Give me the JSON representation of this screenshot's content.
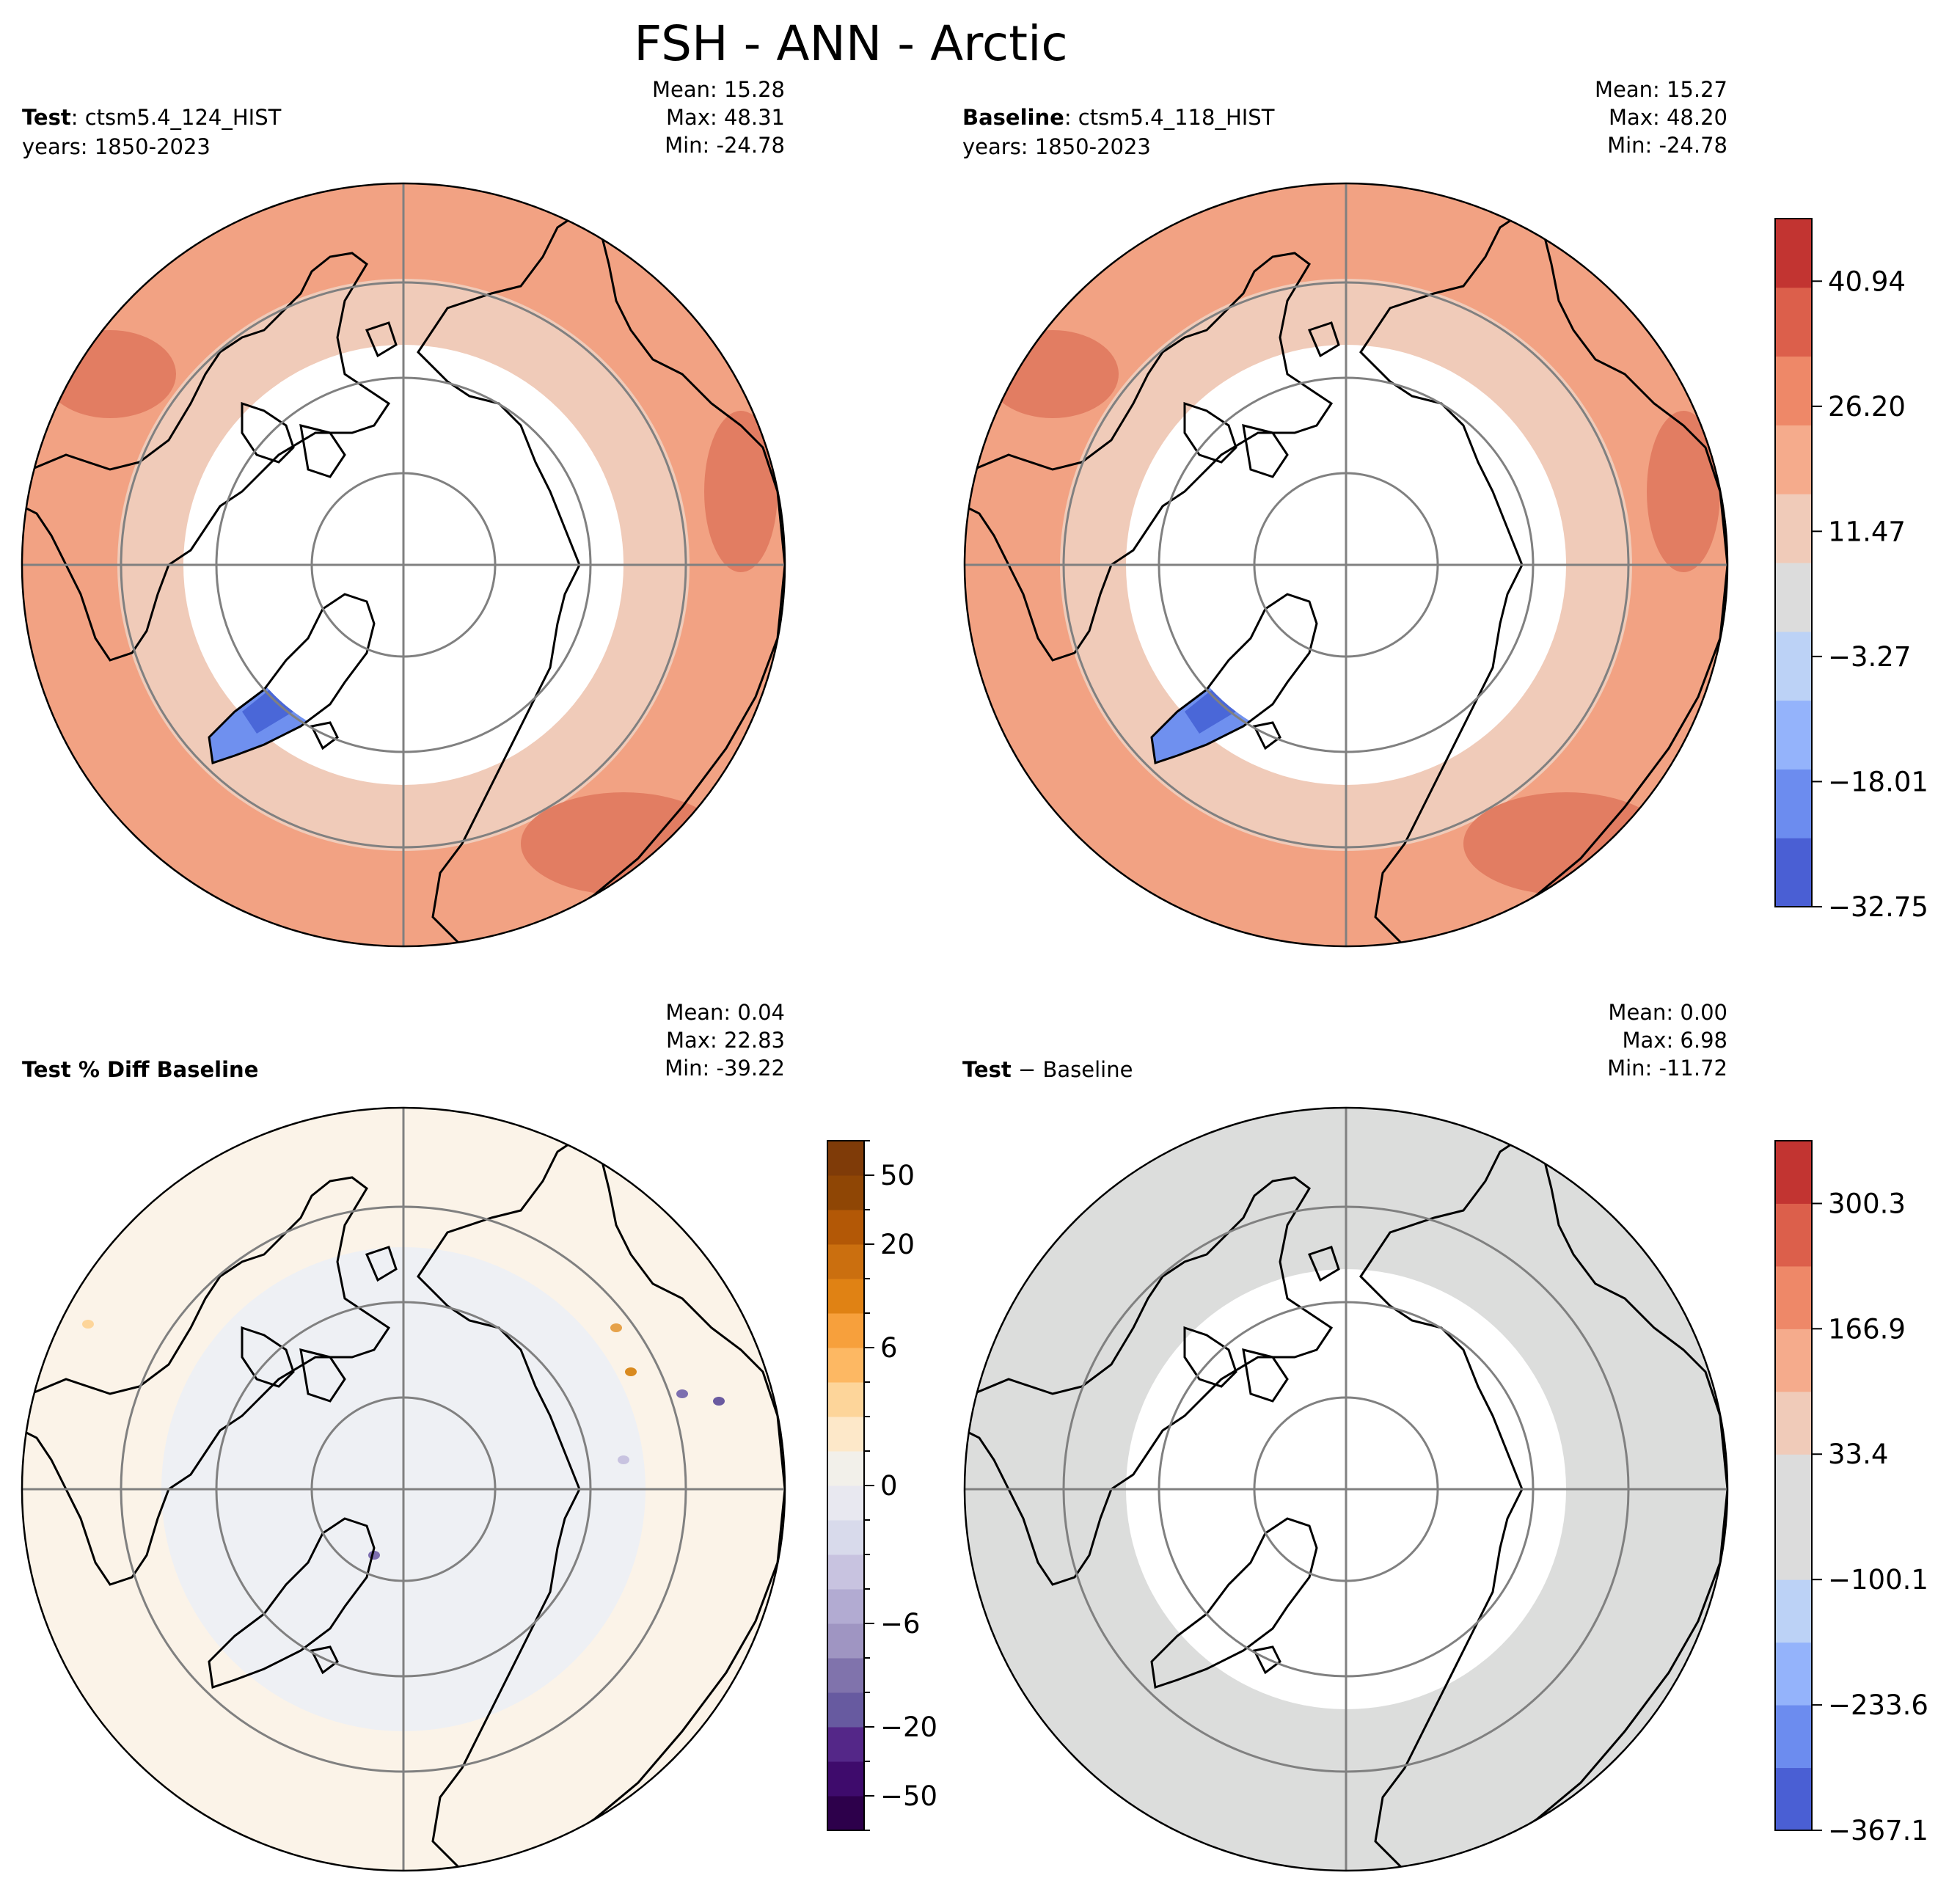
{
  "title": "FSH - ANN - Arctic",
  "panels": [
    {
      "id": "test",
      "label_bold": "Test",
      "label_rest": ": ctsm5.4_124_HIST",
      "years": "years: 1850-2023",
      "stats": [
        "Mean: 15.28",
        "Max: 48.31",
        "Min: -24.78"
      ],
      "style": "full"
    },
    {
      "id": "baseline",
      "label_bold": "Baseline",
      "label_rest": ": ctsm5.4_118_HIST",
      "years": "years: 1850-2023",
      "stats": [
        "Mean: 15.27",
        "Max: 48.20",
        "Min: -24.78"
      ],
      "style": "full"
    },
    {
      "id": "pctdiff",
      "label_bold": "Test % Diff Baseline",
      "label_rest": "",
      "years": "",
      "stats": [
        "Mean:  0.04",
        "Max: 22.83",
        "Min: -39.22"
      ],
      "style": "pct"
    },
    {
      "id": "diff",
      "label_bold": "Test",
      "label_rest": " − Baseline",
      "years": "",
      "stats": [
        "Mean:  0.00",
        "Max:  6.98",
        "Min: -11.72"
      ],
      "style": "diff"
    }
  ],
  "colorbars": [
    {
      "id": "cbar-main",
      "colors": [
        "#4a5fd4",
        "#6c8cef",
        "#94b3fb",
        "#bcd2f6",
        "#dcdcdc",
        "#f0cbb9",
        "#f5ab8c",
        "#ee8868",
        "#dc5f4b",
        "#c23431"
      ],
      "ticks": [
        {
          "label": "−32.75",
          "value": -32.75
        },
        {
          "label": "−18.01",
          "value": -18.01
        },
        {
          "label": "−3.27",
          "value": -3.27
        },
        {
          "label": "11.47",
          "value": 11.47
        },
        {
          "label": "26.20",
          "value": 26.2
        },
        {
          "label": "40.94",
          "value": 40.94
        }
      ],
      "vmin": -32.75,
      "vmax": 48.31
    },
    {
      "id": "cbar-pct",
      "colors": [
        "#2d004b",
        "#3e0b6c",
        "#542788",
        "#675aa0",
        "#8073ac",
        "#9f95c2",
        "#b2abd2",
        "#c8c3e0",
        "#d8daeb",
        "#e8e8f0",
        "#f2f0ea",
        "#fde8c9",
        "#fdd59a",
        "#fdb863",
        "#f7a03c",
        "#e08214",
        "#cb6f0f",
        "#b35806",
        "#8f4605",
        "#7f3b08"
      ],
      "ticks": [
        {
          "label": "−50",
          "index": 1
        },
        {
          "label": "−20",
          "index": 3
        },
        {
          "label": "−6",
          "index": 6
        },
        {
          "label": "0",
          "index": 10
        },
        {
          "label": "6",
          "index": 14
        },
        {
          "label": "20",
          "index": 17
        },
        {
          "label": "50",
          "index": 19
        }
      ]
    },
    {
      "id": "cbar-diff",
      "colors": [
        "#4a5fd4",
        "#6c8cef",
        "#94b3fb",
        "#bcd2f6",
        "#dcdcdc",
        "#dcdcdc",
        "#f0cbb9",
        "#f5ab8c",
        "#ee8868",
        "#dc5f4b",
        "#c23431"
      ],
      "ticks": [
        {
          "label": "−367.1",
          "value": -367.1
        },
        {
          "label": "−233.6",
          "value": -233.6
        },
        {
          "label": "−100.1",
          "value": -100.1
        },
        {
          "label": "33.4",
          "value": 33.4
        },
        {
          "label": "166.9",
          "value": 166.9
        },
        {
          "label": "300.3",
          "value": 300.3
        }
      ],
      "vmin": -367.1,
      "vmax": 367.1
    }
  ],
  "colors": {
    "land_warm": "#f2a283",
    "land_warm_dark": "#e27d62",
    "land_light": "#f0cbb9",
    "neutral": "#dcdcdc",
    "ice_blue": "#6f90ef",
    "ice_blue_dark": "#4a67d8",
    "pct_land": "#fbf3e8",
    "pct_ocean": "#eef0f4",
    "diff_land": "#dcdddc",
    "grid": "#808080"
  }
}
